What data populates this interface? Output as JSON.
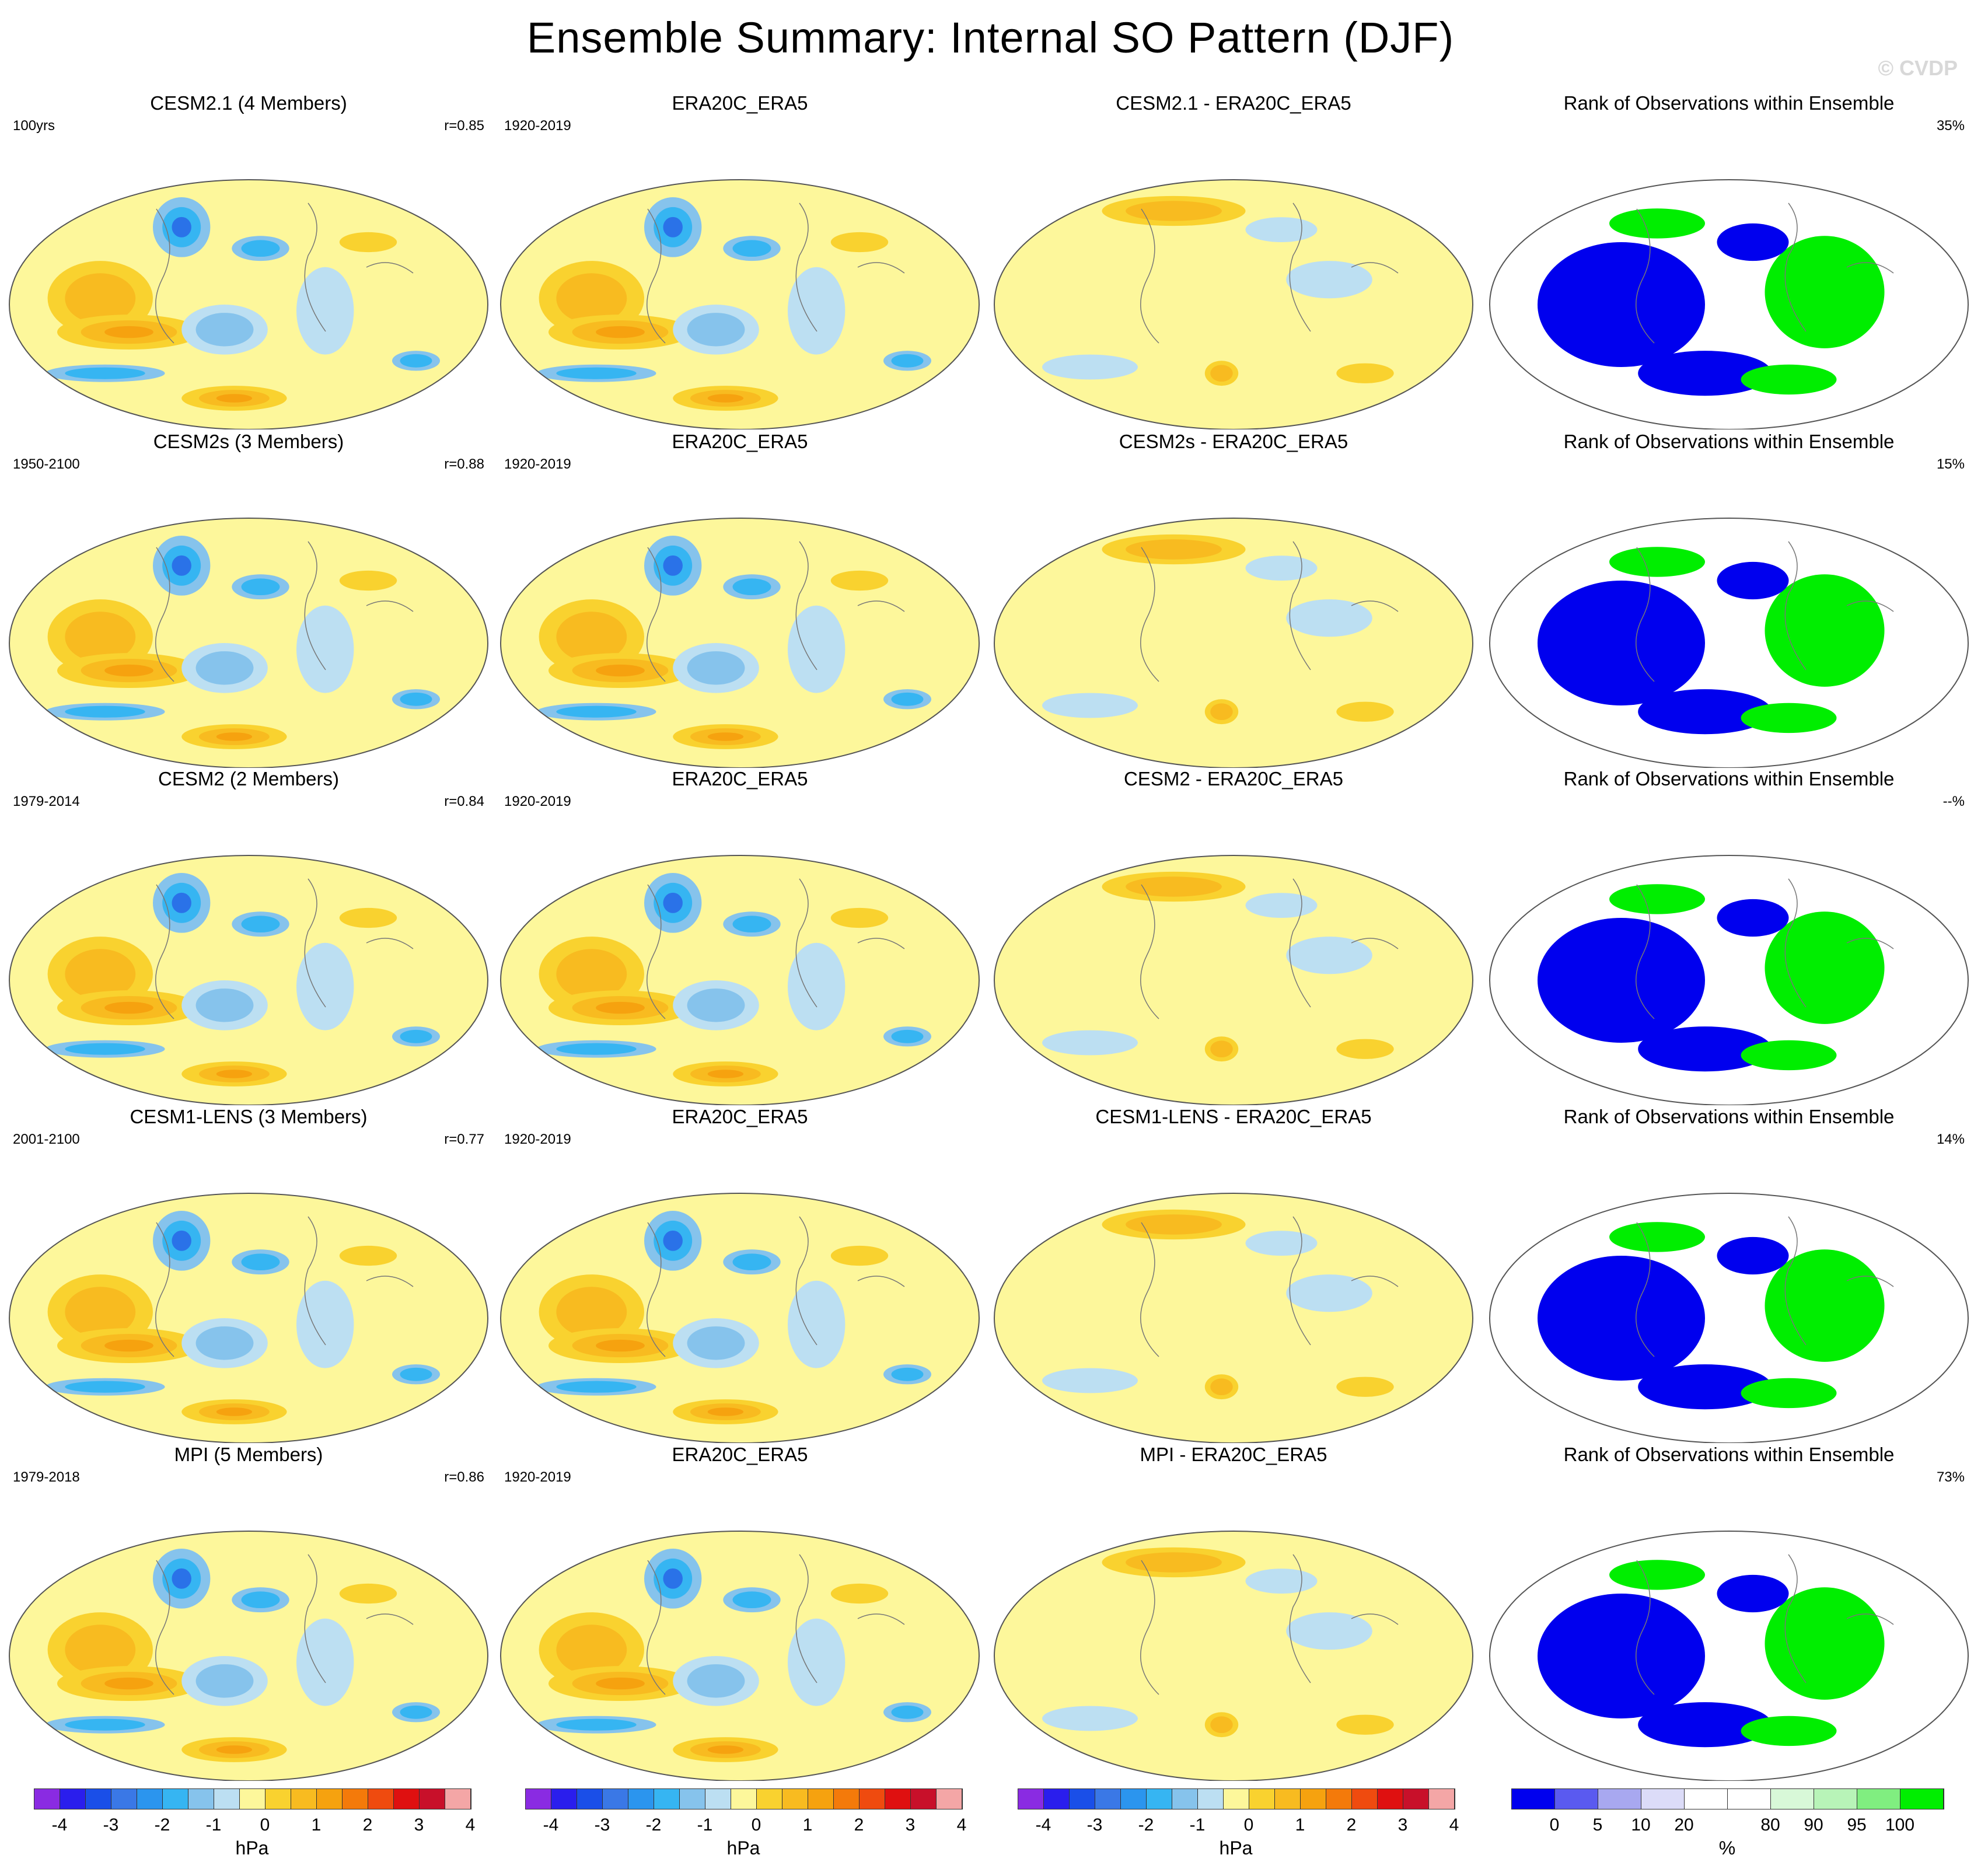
{
  "header": {
    "title": "Ensemble Summary: Internal SO Pattern (DJF)",
    "watermark": "© CVDP"
  },
  "rows": [
    {
      "model": {
        "title": "CESM2.1 (4 Members)",
        "left": "100yrs",
        "right": "r=0.85"
      },
      "obs": {
        "title": "ERA20C_ERA5",
        "left": "1920-2019",
        "right": ""
      },
      "diff": {
        "title": "CESM2.1 - ERA20C_ERA5",
        "left": "",
        "right": ""
      },
      "rank": {
        "title": "Rank of Observations within Ensemble",
        "left": "",
        "right": "35%"
      }
    },
    {
      "model": {
        "title": "CESM2s (3 Members)",
        "left": "1950-2100",
        "right": "r=0.88"
      },
      "obs": {
        "title": "ERA20C_ERA5",
        "left": "1920-2019",
        "right": ""
      },
      "diff": {
        "title": "CESM2s - ERA20C_ERA5",
        "left": "",
        "right": ""
      },
      "rank": {
        "title": "Rank of Observations within Ensemble",
        "left": "",
        "right": "15%"
      }
    },
    {
      "model": {
        "title": "CESM2 (2 Members)",
        "left": "1979-2014",
        "right": "r=0.84"
      },
      "obs": {
        "title": "ERA20C_ERA5",
        "left": "1920-2019",
        "right": ""
      },
      "diff": {
        "title": "CESM2 - ERA20C_ERA5",
        "left": "",
        "right": ""
      },
      "rank": {
        "title": "Rank of Observations within Ensemble",
        "left": "",
        "right": "--%"
      }
    },
    {
      "model": {
        "title": "CESM1-LENS (3 Members)",
        "left": "2001-2100",
        "right": "r=0.77"
      },
      "obs": {
        "title": "ERA20C_ERA5",
        "left": "1920-2019",
        "right": ""
      },
      "diff": {
        "title": "CESM1-LENS - ERA20C_ERA5",
        "left": "",
        "right": ""
      },
      "rank": {
        "title": "Rank of Observations within Ensemble",
        "left": "",
        "right": "14%"
      }
    },
    {
      "model": {
        "title": "MPI (5 Members)",
        "left": "1979-2018",
        "right": "r=0.86"
      },
      "obs": {
        "title": "ERA20C_ERA5",
        "left": "1920-2019",
        "right": ""
      },
      "diff": {
        "title": "MPI - ERA20C_ERA5",
        "left": "",
        "right": ""
      },
      "rank": {
        "title": "Rank of Observations within Ensemble",
        "left": "",
        "right": "73%"
      }
    }
  ],
  "colorbars": {
    "hpa": {
      "unit": "hPa",
      "colors": [
        "#8a2be2",
        "#2a1eed",
        "#1a4fe8",
        "#3a78e6",
        "#2b95ee",
        "#36b5f2",
        "#86c3ec",
        "#bcdff2",
        "#fdf79b",
        "#f9d22f",
        "#f8bb20",
        "#f6a20f",
        "#f47a0a",
        "#ef4b0f",
        "#df1010",
        "#c8102a",
        "#f4a6a6"
      ],
      "ticks": [
        "-4",
        "-3",
        "-2",
        "-1",
        "0",
        "1",
        "2",
        "3",
        "4"
      ]
    },
    "pct": {
      "unit": "%",
      "colors": [
        "#0000ee",
        "#5a5af0",
        "#a8a8f0",
        "#dcdcf8",
        "#ffffff",
        "#ffffff",
        "#d8f8d8",
        "#b8f4b8",
        "#80ee80",
        "#00ee00"
      ],
      "ticks": [
        "0",
        "5",
        "10",
        "20",
        "80",
        "90",
        "95",
        "100"
      ]
    }
  }
}
